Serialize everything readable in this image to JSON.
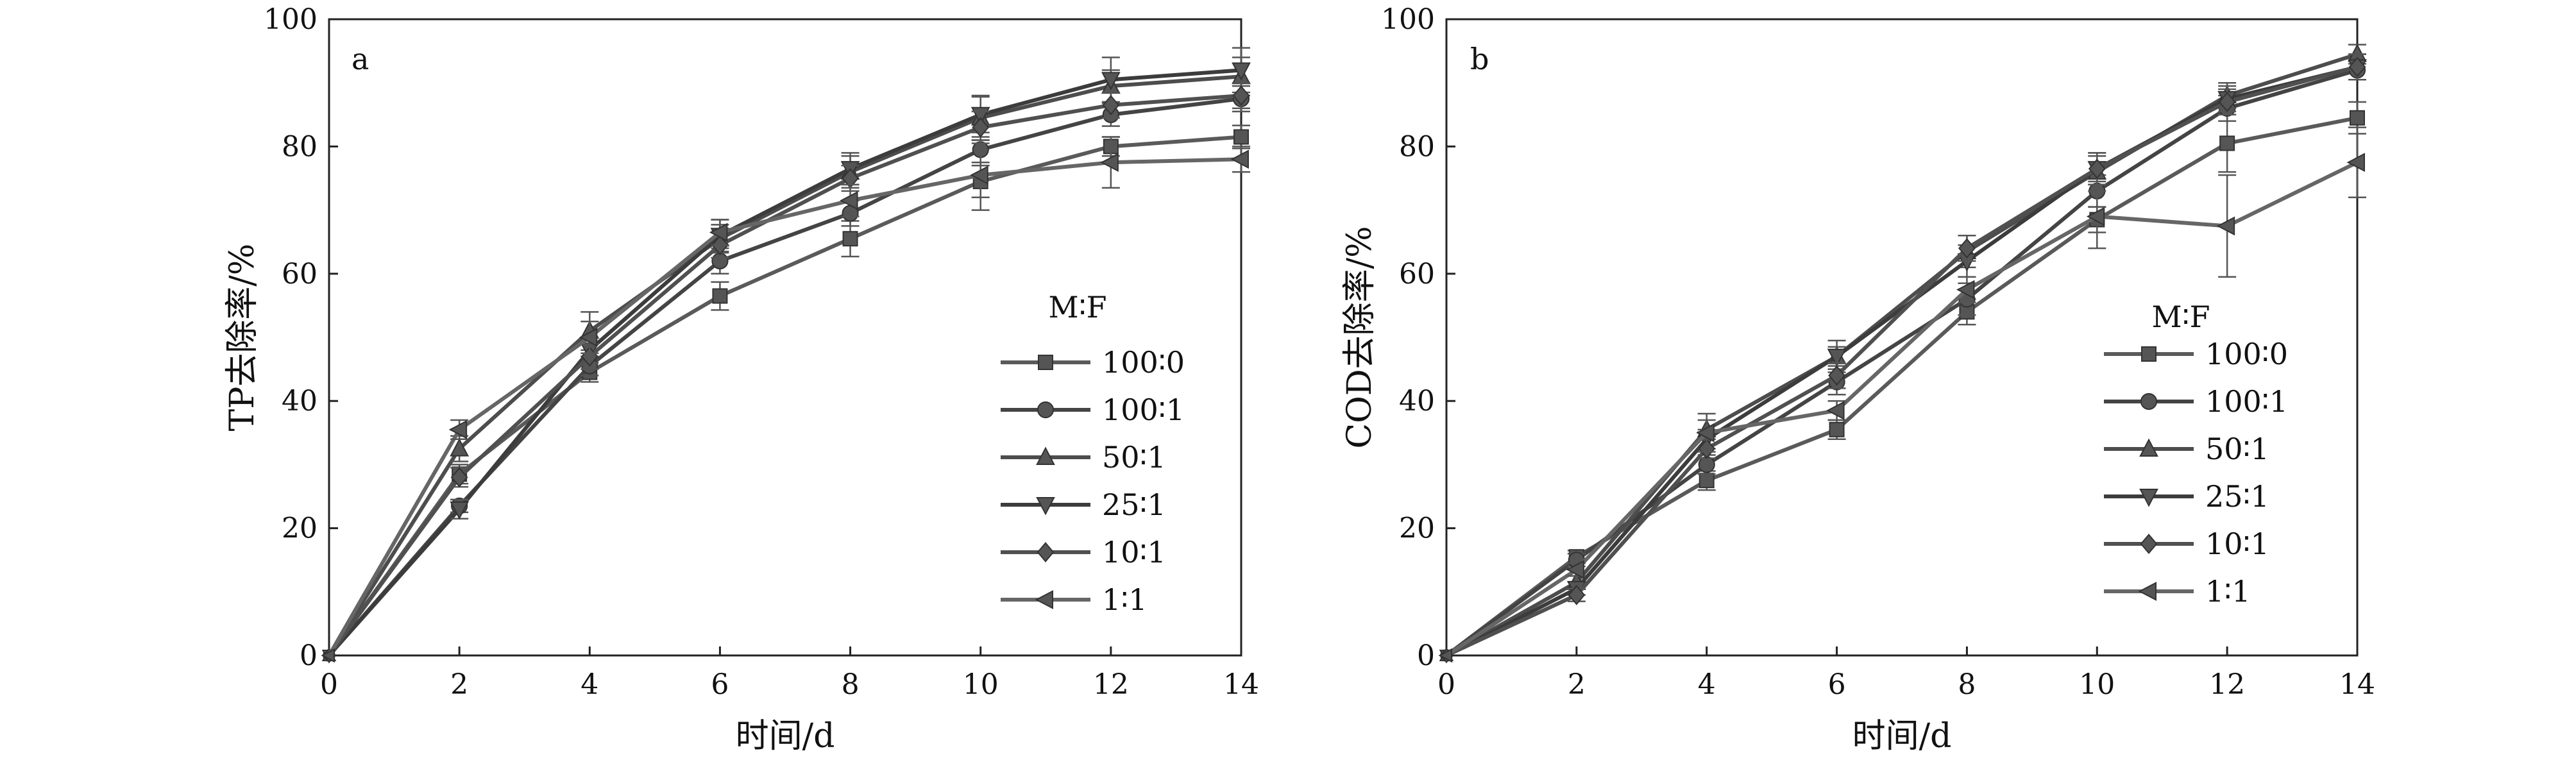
{
  "chart_data": [
    {
      "panel_label": "a",
      "type": "line",
      "xlabel": "时间/d",
      "ylabel": "TP去除率/%",
      "xlim": [
        0,
        14
      ],
      "ylim": [
        0,
        100
      ],
      "xticks": [
        0,
        2,
        4,
        6,
        8,
        10,
        12,
        14
      ],
      "yticks": [
        0,
        20,
        40,
        60,
        80,
        100
      ],
      "grid": false,
      "legend": {
        "title": "M∶F",
        "placement": "right"
      },
      "x": [
        0,
        2,
        4,
        6,
        8,
        10,
        12,
        14
      ],
      "series": [
        {
          "name": "100∶0",
          "marker": "square",
          "values": [
            0,
            28.5,
            44.5,
            56.5,
            65.5,
            74.5,
            80,
            81.5
          ],
          "errors": [
            0,
            1.5,
            1.5,
            2.2,
            2.8,
            2.5,
            1.5,
            1.8
          ]
        },
        {
          "name": "100∶1",
          "marker": "circle",
          "values": [
            0,
            23.5,
            45.5,
            62,
            69.5,
            79.5,
            85,
            87.5
          ],
          "errors": [
            0,
            1,
            1.5,
            2,
            2,
            2,
            1.8,
            2
          ]
        },
        {
          "name": "50∶1",
          "marker": "triangle-up",
          "values": [
            0,
            32.5,
            51,
            65.5,
            76,
            84.5,
            89.5,
            91
          ],
          "errors": [
            0,
            2,
            3,
            2.2,
            2.5,
            3.5,
            2.5,
            3
          ]
        },
        {
          "name": "25∶1",
          "marker": "triangle-down",
          "values": [
            0,
            23,
            48,
            66,
            76.5,
            85,
            90.5,
            92
          ],
          "errors": [
            0,
            1.5,
            2,
            2.5,
            2.5,
            2.8,
            3.5,
            3.5
          ]
        },
        {
          "name": "10∶1",
          "marker": "diamond",
          "values": [
            0,
            28,
            47,
            64.5,
            75,
            83,
            86.5,
            88
          ],
          "errors": [
            0,
            1.5,
            2,
            2,
            2,
            2.5,
            2,
            2
          ]
        },
        {
          "name": "1∶1",
          "marker": "triangle-left",
          "values": [
            0,
            35.5,
            50,
            66.5,
            71.5,
            75.5,
            77.5,
            78
          ],
          "errors": [
            0,
            1.5,
            2.5,
            2,
            2.5,
            5.5,
            4,
            2
          ]
        }
      ]
    },
    {
      "panel_label": "b",
      "type": "line",
      "xlabel": "时间/d",
      "ylabel": "COD去除率/%",
      "xlim": [
        0,
        14
      ],
      "ylim": [
        0,
        100
      ],
      "xticks": [
        0,
        2,
        4,
        6,
        8,
        10,
        12,
        14
      ],
      "yticks": [
        0,
        20,
        40,
        60,
        80,
        100
      ],
      "grid": false,
      "legend": {
        "title": "M∶F",
        "placement": "right"
      },
      "x": [
        0,
        2,
        4,
        6,
        8,
        10,
        12,
        14
      ],
      "series": [
        {
          "name": "100∶0",
          "marker": "square",
          "values": [
            0,
            15.5,
            27.5,
            35.5,
            54,
            68.5,
            80.5,
            84.5
          ],
          "errors": [
            0,
            1,
            1.5,
            1.5,
            2,
            2,
            4.5,
            2.5
          ]
        },
        {
          "name": "100∶1",
          "marker": "circle",
          "values": [
            0,
            15,
            30,
            43,
            56,
            73,
            86,
            92
          ],
          "errors": [
            0,
            1,
            1.5,
            2,
            2.5,
            2.5,
            2,
            1.5
          ]
        },
        {
          "name": "50∶1",
          "marker": "triangle-up",
          "values": [
            0,
            11.5,
            35.5,
            47,
            63.5,
            76,
            88,
            94.5
          ],
          "errors": [
            0,
            1,
            1.5,
            1.5,
            2.5,
            3,
            2,
            1.5
          ]
        },
        {
          "name": "25∶1",
          "marker": "triangle-down",
          "values": [
            0,
            10.5,
            34,
            47,
            62,
            76.5,
            87.5,
            92.5
          ],
          "errors": [
            0,
            1,
            1.5,
            2.5,
            2.5,
            2,
            2,
            2
          ]
        },
        {
          "name": "10∶1",
          "marker": "diamond",
          "values": [
            0,
            9.5,
            32.5,
            44,
            64,
            76.5,
            87,
            92.5
          ],
          "errors": [
            0,
            1,
            1.5,
            2,
            2,
            2.5,
            2,
            2
          ]
        },
        {
          "name": "1∶1",
          "marker": "triangle-left",
          "values": [
            0,
            13.5,
            35,
            38.5,
            57.5,
            69,
            67.5,
            77.5
          ],
          "errors": [
            0,
            1,
            3,
            1.5,
            2,
            5,
            8,
            5.5
          ]
        }
      ]
    }
  ]
}
